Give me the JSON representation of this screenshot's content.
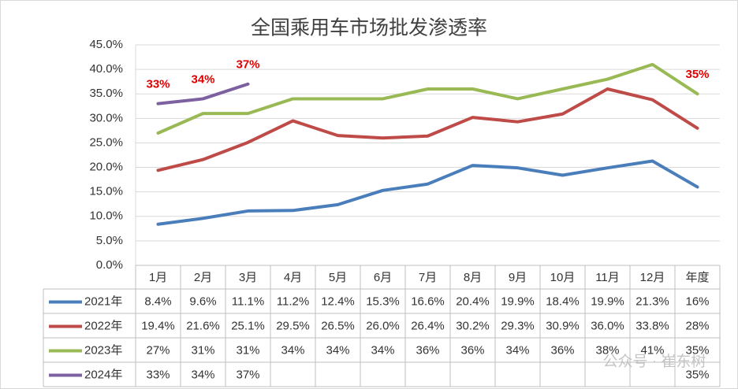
{
  "chart_data": {
    "type": "line",
    "title": "全国乘用车市场批发渗透率",
    "watermark": "公众号 · 崔东树",
    "categories": [
      "1月",
      "2月",
      "3月",
      "4月",
      "5月",
      "6月",
      "7月",
      "8月",
      "9月",
      "10月",
      "11月",
      "12月",
      "年度"
    ],
    "ylim": [
      0,
      45
    ],
    "yticks": [
      {
        "value": 0,
        "label": "0.0%"
      },
      {
        "value": 5,
        "label": "5.0%"
      },
      {
        "value": 10,
        "label": "10.0%"
      },
      {
        "value": 15,
        "label": "15.0%"
      },
      {
        "value": 20,
        "label": "20.0%"
      },
      {
        "value": 25,
        "label": "25.0%"
      },
      {
        "value": 30,
        "label": "30.0%"
      },
      {
        "value": 35,
        "label": "35.0%"
      },
      {
        "value": 40,
        "label": "40.0%"
      },
      {
        "value": 45,
        "label": "45.0%"
      }
    ],
    "grid": true,
    "series": [
      {
        "name": "2021年",
        "color": "#4a7ebb",
        "values": [
          8.4,
          9.6,
          11.1,
          11.2,
          12.4,
          15.3,
          16.6,
          20.4,
          19.9,
          18.4,
          19.9,
          21.3,
          16
        ],
        "value_labels": [
          "8.4%",
          "9.6%",
          "11.1%",
          "11.2%",
          "12.4%",
          "15.3%",
          "16.6%",
          "20.4%",
          "19.9%",
          "18.4%",
          "19.9%",
          "21.3%",
          "16%"
        ]
      },
      {
        "name": "2022年",
        "color": "#be4b48",
        "values": [
          19.4,
          21.6,
          25.1,
          29.5,
          26.5,
          26.0,
          26.4,
          30.2,
          29.3,
          30.9,
          36.0,
          33.8,
          28
        ],
        "value_labels": [
          "19.4%",
          "21.6%",
          "25.1%",
          "29.5%",
          "26.5%",
          "26.0%",
          "26.4%",
          "30.2%",
          "29.3%",
          "30.9%",
          "36.0%",
          "33.8%",
          "28%"
        ]
      },
      {
        "name": "2023年",
        "color": "#98b954",
        "values": [
          27,
          31,
          31,
          34,
          34,
          34,
          36,
          36,
          34,
          36,
          38,
          41,
          35
        ],
        "value_labels": [
          "27%",
          "31%",
          "31%",
          "34%",
          "34%",
          "34%",
          "36%",
          "36%",
          "34%",
          "36%",
          "38%",
          "41%",
          "35%"
        ]
      },
      {
        "name": "2024年",
        "color": "#7d60a0",
        "values": [
          33,
          34,
          37,
          null,
          null,
          null,
          null,
          null,
          null,
          null,
          null,
          null,
          35
        ],
        "value_labels": [
          "33%",
          "34%",
          "37%",
          null,
          null,
          null,
          null,
          null,
          null,
          null,
          null,
          null,
          "35%"
        ],
        "data_labels": true,
        "label_color": "#e00000"
      }
    ]
  }
}
